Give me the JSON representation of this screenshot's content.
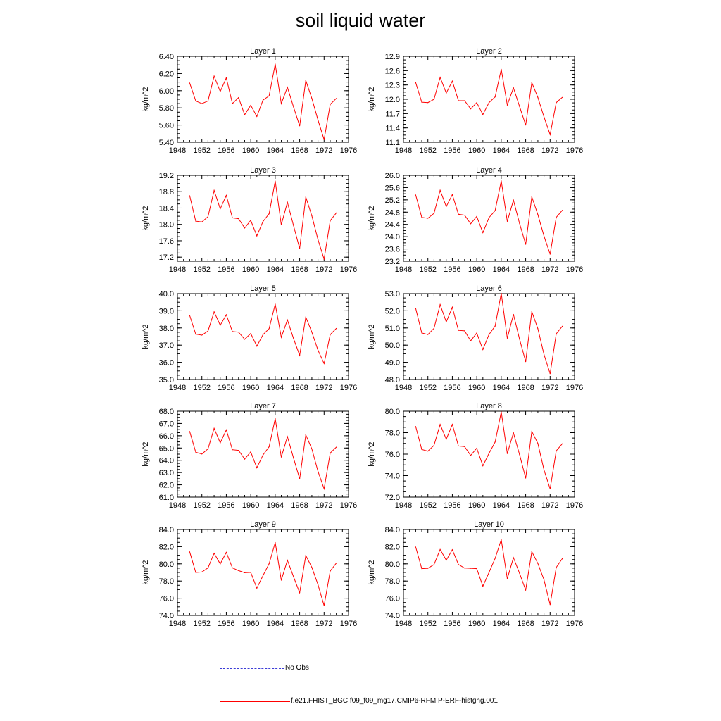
{
  "title": "soil liquid water",
  "legend": {
    "no_obs_label": "No Obs",
    "model_label": "f.e21.FHIST_BGC.f09_f09_mg17.CMIP6-RFMIP-ERF-histghg.001",
    "no_obs_color": "#3b3bd6",
    "model_color": "#ff0000"
  },
  "chart_data": [
    {
      "type": "line",
      "title": "Layer 1",
      "ylabel": "kg/m^2",
      "xlim": [
        1948,
        1976
      ],
      "xticks": [
        "1948",
        "1952",
        "1956",
        "1960",
        "1964",
        "1968",
        "1972",
        "1976"
      ],
      "ylim": [
        5.4,
        6.4
      ],
      "yticks": [
        "5.40",
        "5.60",
        "5.80",
        "6.00",
        "6.20",
        "6.40"
      ],
      "x": [
        1950,
        1951,
        1952,
        1953,
        1954,
        1955,
        1956,
        1957,
        1958,
        1959,
        1960,
        1961,
        1962,
        1963,
        1964,
        1965,
        1966,
        1967,
        1968,
        1969,
        1970,
        1971,
        1972,
        1973,
        1974
      ],
      "series": [
        {
          "values": [
            6.09,
            5.88,
            5.85,
            5.88,
            6.17,
            5.99,
            6.15,
            5.85,
            5.92,
            5.72,
            5.83,
            5.7,
            5.89,
            5.94,
            6.31,
            5.85,
            6.04,
            5.81,
            5.59,
            6.12,
            5.91,
            5.66,
            5.43,
            5.84,
            5.91
          ]
        }
      ]
    },
    {
      "type": "line",
      "title": "Layer 2",
      "ylabel": "kg/m^2",
      "xlim": [
        1948,
        1976
      ],
      "xticks": [
        "1948",
        "1952",
        "1956",
        "1960",
        "1964",
        "1968",
        "1972",
        "1976"
      ],
      "ylim": [
        11.1,
        12.9
      ],
      "yticks": [
        "11.1",
        "11.4",
        "11.7",
        "12.0",
        "12.3",
        "12.6",
        "12.9"
      ],
      "x": [
        1950,
        1951,
        1952,
        1953,
        1954,
        1955,
        1956,
        1957,
        1958,
        1959,
        1960,
        1961,
        1962,
        1963,
        1964,
        1965,
        1966,
        1967,
        1968,
        1969,
        1970,
        1971,
        1972,
        1973,
        1974
      ],
      "series": [
        {
          "values": [
            12.35,
            11.94,
            11.93,
            12.0,
            12.46,
            12.13,
            12.38,
            11.97,
            11.97,
            11.8,
            11.93,
            11.68,
            11.93,
            12.05,
            12.63,
            11.88,
            12.24,
            11.85,
            11.46,
            12.35,
            12.04,
            11.63,
            11.26,
            11.93,
            12.04
          ]
        }
      ]
    },
    {
      "type": "line",
      "title": "Layer 3",
      "ylabel": "kg/m^2",
      "xlim": [
        1948,
        1976
      ],
      "xticks": [
        "1948",
        "1952",
        "1956",
        "1960",
        "1964",
        "1968",
        "1972",
        "1976"
      ],
      "ylim": [
        17.1,
        19.2
      ],
      "yticks": [
        "17.2",
        "17.6",
        "18.0",
        "18.4",
        "18.8",
        "19.2"
      ],
      "x": [
        1950,
        1951,
        1952,
        1953,
        1954,
        1955,
        1956,
        1957,
        1958,
        1959,
        1960,
        1961,
        1962,
        1963,
        1964,
        1965,
        1966,
        1967,
        1968,
        1969,
        1970,
        1971,
        1972,
        1973,
        1974
      ],
      "series": [
        {
          "values": [
            18.7,
            18.08,
            18.06,
            18.19,
            18.83,
            18.38,
            18.71,
            18.16,
            18.14,
            17.91,
            18.1,
            17.72,
            18.07,
            18.26,
            19.06,
            17.99,
            18.54,
            17.97,
            17.41,
            18.67,
            18.21,
            17.63,
            17.15,
            18.09,
            18.28
          ]
        }
      ]
    },
    {
      "type": "line",
      "title": "Layer 4",
      "ylabel": "kg/m^2",
      "xlim": [
        1948,
        1976
      ],
      "xticks": [
        "1948",
        "1952",
        "1956",
        "1960",
        "1964",
        "1968",
        "1972",
        "1976"
      ],
      "ylim": [
        23.2,
        26.0
      ],
      "yticks": [
        "23.2",
        "23.6",
        "24.0",
        "24.4",
        "24.8",
        "25.2",
        "25.6",
        "26.0"
      ],
      "x": [
        1950,
        1951,
        1952,
        1953,
        1954,
        1955,
        1956,
        1957,
        1958,
        1959,
        1960,
        1961,
        1962,
        1963,
        1964,
        1965,
        1966,
        1967,
        1968,
        1969,
        1970,
        1971,
        1972,
        1973,
        1974
      ],
      "series": [
        {
          "values": [
            25.36,
            24.63,
            24.6,
            24.76,
            25.51,
            24.98,
            25.37,
            24.73,
            24.7,
            24.42,
            24.66,
            24.13,
            24.62,
            24.85,
            25.82,
            24.5,
            25.19,
            24.43,
            23.75,
            25.3,
            24.72,
            24.02,
            23.43,
            24.63,
            24.86
          ]
        }
      ]
    },
    {
      "type": "line",
      "title": "Layer 5",
      "ylabel": "kg/m^2",
      "xlim": [
        1948,
        1976
      ],
      "xticks": [
        "1948",
        "1952",
        "1956",
        "1960",
        "1964",
        "1968",
        "1972",
        "1976"
      ],
      "ylim": [
        35.0,
        40.0
      ],
      "yticks": [
        "35.0",
        "36.0",
        "37.0",
        "38.0",
        "39.0",
        "40.0"
      ],
      "x": [
        1950,
        1951,
        1952,
        1953,
        1954,
        1955,
        1956,
        1957,
        1958,
        1959,
        1960,
        1961,
        1962,
        1963,
        1964,
        1965,
        1966,
        1967,
        1968,
        1969,
        1970,
        1971,
        1972,
        1973,
        1974
      ],
      "series": [
        {
          "values": [
            38.73,
            37.64,
            37.58,
            37.82,
            38.94,
            38.16,
            38.77,
            37.79,
            37.76,
            37.34,
            37.68,
            36.94,
            37.61,
            37.96,
            39.39,
            37.46,
            38.47,
            37.38,
            36.41,
            38.64,
            37.76,
            36.71,
            35.93,
            37.61,
            37.97
          ]
        }
      ]
    },
    {
      "type": "line",
      "title": "Layer 6",
      "ylabel": "kg/m^2",
      "xlim": [
        1948,
        1976
      ],
      "xticks": [
        "1948",
        "1952",
        "1956",
        "1960",
        "1964",
        "1968",
        "1972",
        "1976"
      ],
      "ylim": [
        48.0,
        53.0
      ],
      "yticks": [
        "48.0",
        "49.0",
        "50.0",
        "51.0",
        "52.0",
        "53.0"
      ],
      "x": [
        1950,
        1951,
        1952,
        1953,
        1954,
        1955,
        1956,
        1957,
        1958,
        1959,
        1960,
        1961,
        1962,
        1963,
        1964,
        1965,
        1966,
        1967,
        1968,
        1969,
        1970,
        1971,
        1972,
        1973,
        1974
      ],
      "series": [
        {
          "values": [
            52.14,
            50.71,
            50.62,
            50.98,
            52.36,
            51.35,
            52.21,
            50.86,
            50.83,
            50.25,
            50.71,
            49.74,
            50.62,
            51.11,
            53.02,
            50.4,
            51.79,
            50.35,
            49.04,
            51.95,
            50.96,
            49.46,
            48.34,
            50.66,
            51.1
          ]
        }
      ]
    },
    {
      "type": "line",
      "title": "Layer 7",
      "ylabel": "kg/m^2",
      "xlim": [
        1948,
        1976
      ],
      "xticks": [
        "1948",
        "1952",
        "1956",
        "1960",
        "1964",
        "1968",
        "1972",
        "1976"
      ],
      "ylim": [
        61.0,
        68.0
      ],
      "yticks": [
        "61.0",
        "62.0",
        "63.0",
        "64.0",
        "65.0",
        "66.0",
        "67.0",
        "68.0"
      ],
      "x": [
        1950,
        1951,
        1952,
        1953,
        1954,
        1955,
        1956,
        1957,
        1958,
        1959,
        1960,
        1961,
        1962,
        1963,
        1964,
        1965,
        1966,
        1967,
        1968,
        1969,
        1970,
        1971,
        1972,
        1973,
        1974
      ],
      "series": [
        {
          "values": [
            66.35,
            64.66,
            64.51,
            64.93,
            66.6,
            65.42,
            66.48,
            64.86,
            64.81,
            64.09,
            64.69,
            63.38,
            64.43,
            65.1,
            67.4,
            64.26,
            65.93,
            64.18,
            62.49,
            66.07,
            64.93,
            63.1,
            61.67,
            64.59,
            65.07
          ]
        }
      ]
    },
    {
      "type": "line",
      "title": "Layer 8",
      "ylabel": "kg/m^2",
      "xlim": [
        1948,
        1976
      ],
      "xticks": [
        "1948",
        "1952",
        "1956",
        "1960",
        "1964",
        "1968",
        "1972",
        "1976"
      ],
      "ylim": [
        72.0,
        80.0
      ],
      "yticks": [
        "72.0",
        "74.0",
        "76.0",
        "78.0",
        "80.0"
      ],
      "x": [
        1950,
        1951,
        1952,
        1953,
        1954,
        1955,
        1956,
        1957,
        1958,
        1959,
        1960,
        1961,
        1962,
        1963,
        1964,
        1965,
        1966,
        1967,
        1968,
        1969,
        1970,
        1971,
        1972,
        1973,
        1974
      ],
      "series": [
        {
          "values": [
            78.58,
            76.43,
            76.28,
            76.82,
            78.77,
            77.39,
            78.77,
            76.76,
            76.7,
            75.88,
            76.56,
            74.91,
            76.07,
            77.13,
            79.94,
            76.06,
            77.99,
            75.96,
            73.77,
            78.12,
            77.0,
            74.53,
            72.76,
            76.31,
            76.97
          ]
        }
      ]
    },
    {
      "type": "line",
      "title": "Layer 9",
      "ylabel": "kg/m^2",
      "xlim": [
        1948,
        1976
      ],
      "xticks": [
        "1948",
        "1952",
        "1956",
        "1960",
        "1964",
        "1968",
        "1972",
        "1976"
      ],
      "ylim": [
        74.0,
        84.0
      ],
      "yticks": [
        "74.0",
        "76.0",
        "78.0",
        "80.0",
        "82.0",
        "84.0"
      ],
      "x": [
        1950,
        1951,
        1952,
        1953,
        1954,
        1955,
        1956,
        1957,
        1958,
        1959,
        1960,
        1961,
        1962,
        1963,
        1964,
        1965,
        1966,
        1967,
        1968,
        1969,
        1970,
        1971,
        1972,
        1973,
        1974
      ],
      "series": [
        {
          "values": [
            81.4,
            79.0,
            79.05,
            79.53,
            81.24,
            79.99,
            81.34,
            79.53,
            79.21,
            78.97,
            79.01,
            77.17,
            78.63,
            80.02,
            82.48,
            78.1,
            80.42,
            78.49,
            76.64,
            80.98,
            79.59,
            77.59,
            75.13,
            79.17,
            80.08
          ]
        }
      ]
    },
    {
      "type": "line",
      "title": "Layer 10",
      "ylabel": "kg/m^2",
      "xlim": [
        1948,
        1976
      ],
      "xticks": [
        "1948",
        "1952",
        "1956",
        "1960",
        "1964",
        "1968",
        "1972",
        "1976"
      ],
      "ylim": [
        74.0,
        84.0
      ],
      "yticks": [
        "74.0",
        "76.0",
        "78.0",
        "80.0",
        "82.0",
        "84.0"
      ],
      "x": [
        1950,
        1951,
        1952,
        1953,
        1954,
        1955,
        1956,
        1957,
        1958,
        1959,
        1960,
        1961,
        1962,
        1963,
        1964,
        1965,
        1966,
        1967,
        1968,
        1969,
        1970,
        1971,
        1972,
        1973,
        1974
      ],
      "series": [
        {
          "values": [
            81.96,
            79.44,
            79.48,
            79.92,
            81.67,
            80.43,
            81.64,
            79.93,
            79.51,
            79.48,
            79.44,
            77.39,
            78.99,
            80.64,
            82.82,
            78.28,
            80.72,
            78.9,
            76.95,
            81.42,
            80.05,
            78.14,
            75.25,
            79.58,
            80.61
          ]
        }
      ]
    }
  ]
}
